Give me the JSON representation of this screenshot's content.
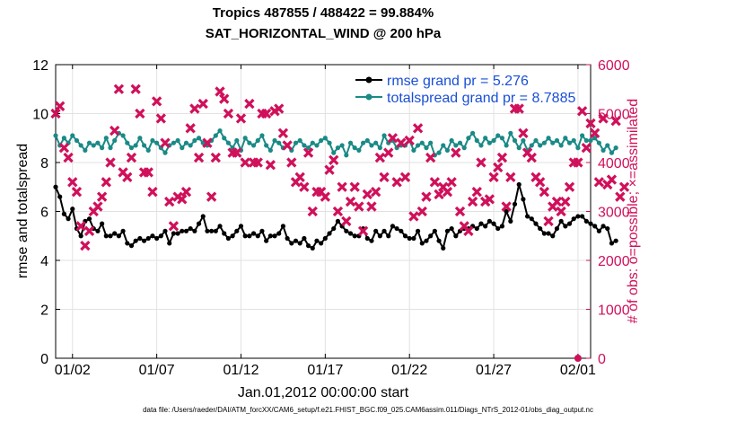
{
  "chart_data": {
    "type": "line",
    "title_lines": [
      "Tropics 487855 / 488422 = 99.884%",
      "SAT_HORIZONTAL_WIND @ 200 hPa"
    ],
    "xlabel": "Jan.01,2012 00:00:00 start",
    "ylabel_left": "rmse and totalspread",
    "ylabel_right": "# of obs: o=possible; ×=assimilated",
    "footnote": "data file: /Users/raeder/DAI/ATM_forcXX/CAM6_setup/f.e21.FHIST_BGC.f09_025.CAM6assim.011/Diags_NTrS_2012-01/obs_diag_output.nc",
    "xlim": [
      0,
      31.75
    ],
    "ylim_left": [
      0,
      12
    ],
    "ylim_right": [
      0,
      6000
    ],
    "x_ticks": [
      {
        "value": 1,
        "label": "01/02"
      },
      {
        "value": 6,
        "label": "01/07"
      },
      {
        "value": 11,
        "label": "01/12"
      },
      {
        "value": 16,
        "label": "01/17"
      },
      {
        "value": 21,
        "label": "01/22"
      },
      {
        "value": 26,
        "label": "01/27"
      },
      {
        "value": 31,
        "label": "02/01"
      }
    ],
    "y_ticks_left": [
      "0",
      "2",
      "4",
      "6",
      "8",
      "10",
      "12"
    ],
    "y_ticks_right": [
      "0",
      "1000",
      "2000",
      "3000",
      "4000",
      "5000",
      "6000"
    ],
    "grid": true,
    "legend_position": "top-right",
    "series": [
      {
        "name": "rmse grand pr = 5.276",
        "axis": "left",
        "color": "#000000",
        "marker": "circle",
        "values": [
          7.0,
          6.6,
          5.9,
          5.7,
          6.1,
          5.3,
          5.0,
          5.6,
          5.7,
          5.3,
          5.2,
          5.5,
          5.0,
          5.0,
          5.1,
          5.0,
          5.2,
          4.7,
          4.6,
          4.8,
          4.9,
          4.8,
          4.9,
          5.0,
          4.9,
          5.0,
          5.2,
          4.7,
          5.1,
          5.1,
          5.2,
          5.2,
          5.3,
          5.2,
          5.5,
          5.8,
          5.2,
          5.2,
          5.2,
          5.4,
          5.1,
          4.9,
          5.0,
          5.2,
          5.4,
          5.0,
          5.0,
          5.1,
          5.0,
          5.2,
          4.8,
          5.0,
          5.0,
          5.1,
          5.4,
          4.9,
          4.7,
          4.8,
          4.7,
          4.9,
          4.6,
          4.5,
          4.8,
          4.7,
          4.9,
          5.1,
          5.3,
          5.6,
          5.4,
          5.2,
          5.1,
          5.0,
          5.0,
          5.3,
          4.9,
          4.8,
          5.2,
          5.0,
          5.2,
          5.0,
          5.4,
          5.3,
          5.2,
          5.0,
          4.9,
          4.9,
          5.2,
          4.7,
          4.8,
          5.0,
          5.2,
          4.8,
          4.5,
          5.2,
          5.3,
          5.0,
          5.2,
          5.3,
          5.3,
          5.4,
          5.3,
          5.5,
          5.4,
          5.6,
          5.5,
          5.3,
          5.4,
          6.0,
          5.6,
          6.3,
          7.1,
          6.5,
          5.8,
          5.7,
          5.5,
          5.3,
          5.1,
          5.1,
          5.0,
          5.3,
          5.6,
          5.4,
          5.5,
          5.7,
          5.8,
          5.8,
          5.6,
          5.5,
          5.4,
          5.2,
          5.4,
          5.3,
          4.7,
          4.8
        ]
      },
      {
        "name": "totalspread grand pr = 8.7885",
        "axis": "left",
        "color": "#1a8a86",
        "marker": "circle",
        "values": [
          9.1,
          8.7,
          9.0,
          8.8,
          9.1,
          8.9,
          8.7,
          8.5,
          8.8,
          8.7,
          8.8,
          8.6,
          9.0,
          8.6,
          8.9,
          9.2,
          9.1,
          8.8,
          8.6,
          8.7,
          9.0,
          8.7,
          8.5,
          8.9,
          8.8,
          8.6,
          8.4,
          8.7,
          8.8,
          8.9,
          8.6,
          8.8,
          8.7,
          8.9,
          9.0,
          8.8,
          8.7,
          8.9,
          9.1,
          9.3,
          9.0,
          8.8,
          8.6,
          8.9,
          8.5,
          9.0,
          8.8,
          8.7,
          8.9,
          9.1,
          8.7,
          8.5,
          8.9,
          8.8,
          8.6,
          8.7,
          8.5,
          8.8,
          8.9,
          8.7,
          8.6,
          8.8,
          8.7,
          8.9,
          9.0,
          8.8,
          8.4,
          8.6,
          8.7,
          8.3,
          8.8,
          8.6,
          8.5,
          8.8,
          8.9,
          8.7,
          8.8,
          8.6,
          9.1,
          8.8,
          8.9,
          8.6,
          8.7,
          8.7,
          8.9,
          8.5,
          8.7,
          8.8,
          8.6,
          8.8,
          8.3,
          8.4,
          8.7,
          8.5,
          8.9,
          8.7,
          8.8,
          8.6,
          9.0,
          9.2,
          8.9,
          8.7,
          9.0,
          8.8,
          8.9,
          9.1,
          9.0,
          8.7,
          9.2,
          8.9,
          8.6,
          8.9,
          8.5,
          8.7,
          8.9,
          8.7,
          8.8,
          9.0,
          8.8,
          8.9,
          8.7,
          9.0,
          8.8,
          8.9,
          8.6,
          9.1,
          8.9,
          8.9,
          9.0,
          8.8,
          8.5,
          8.7,
          8.4,
          8.6
        ]
      },
      {
        "name": "# of obs assimilated",
        "axis": "right",
        "color": "#d0105a",
        "marker": "x",
        "values": [
          5000,
          5150,
          4300,
          4100,
          3600,
          3400,
          2700,
          2300,
          2600,
          3000,
          3100,
          3300,
          3600,
          4000,
          4650,
          5500,
          3800,
          3700,
          4100,
          5500,
          5000,
          3800,
          3800,
          3400,
          5250,
          4900,
          4400,
          3200,
          2700,
          3300,
          3250,
          3400,
          4700,
          5100,
          4100,
          5200,
          4400,
          3300,
          4100,
          5450,
          5300,
          5000,
          4200,
          4200,
          4900,
          4000,
          5200,
          4000,
          4000,
          5000,
          5000,
          3950,
          5050,
          5100,
          4600,
          4350,
          4000,
          3600,
          3700,
          3500,
          4200,
          3000,
          3400,
          3400,
          3300,
          3850,
          4050,
          3000,
          3500,
          2800,
          3200,
          3500,
          3100,
          2600,
          3350,
          3100,
          3400,
          4100,
          3700,
          4200,
          4500,
          3600,
          4400,
          3700,
          4450,
          2900,
          4700,
          3000,
          3300,
          4100,
          3600,
          3350,
          3500,
          3400,
          3600,
          4200,
          3000,
          2700,
          2600,
          3200,
          3400,
          4000,
          3200,
          3250,
          3700,
          3900,
          4100,
          3100,
          3700,
          5100,
          5100,
          4600,
          4200,
          4100,
          3700,
          3600,
          3400,
          2800,
          3100,
          3200,
          3000,
          3200,
          3500,
          4000,
          4000,
          5050,
          4300,
          4800,
          4600,
          3600,
          4900,
          3550,
          3650,
          4850,
          3300,
          3500
        ]
      },
      {
        "name": "# of obs possible",
        "axis": "right",
        "color": "#d0105a",
        "marker": "circle",
        "points": [
          {
            "x": 31.0,
            "y": 0
          }
        ]
      }
    ]
  },
  "legend": [
    {
      "label": "rmse grand pr = 5.276",
      "color": "#000000"
    },
    {
      "label": "totalspread grand pr = 8.7885",
      "color": "#1a8a86"
    }
  ]
}
